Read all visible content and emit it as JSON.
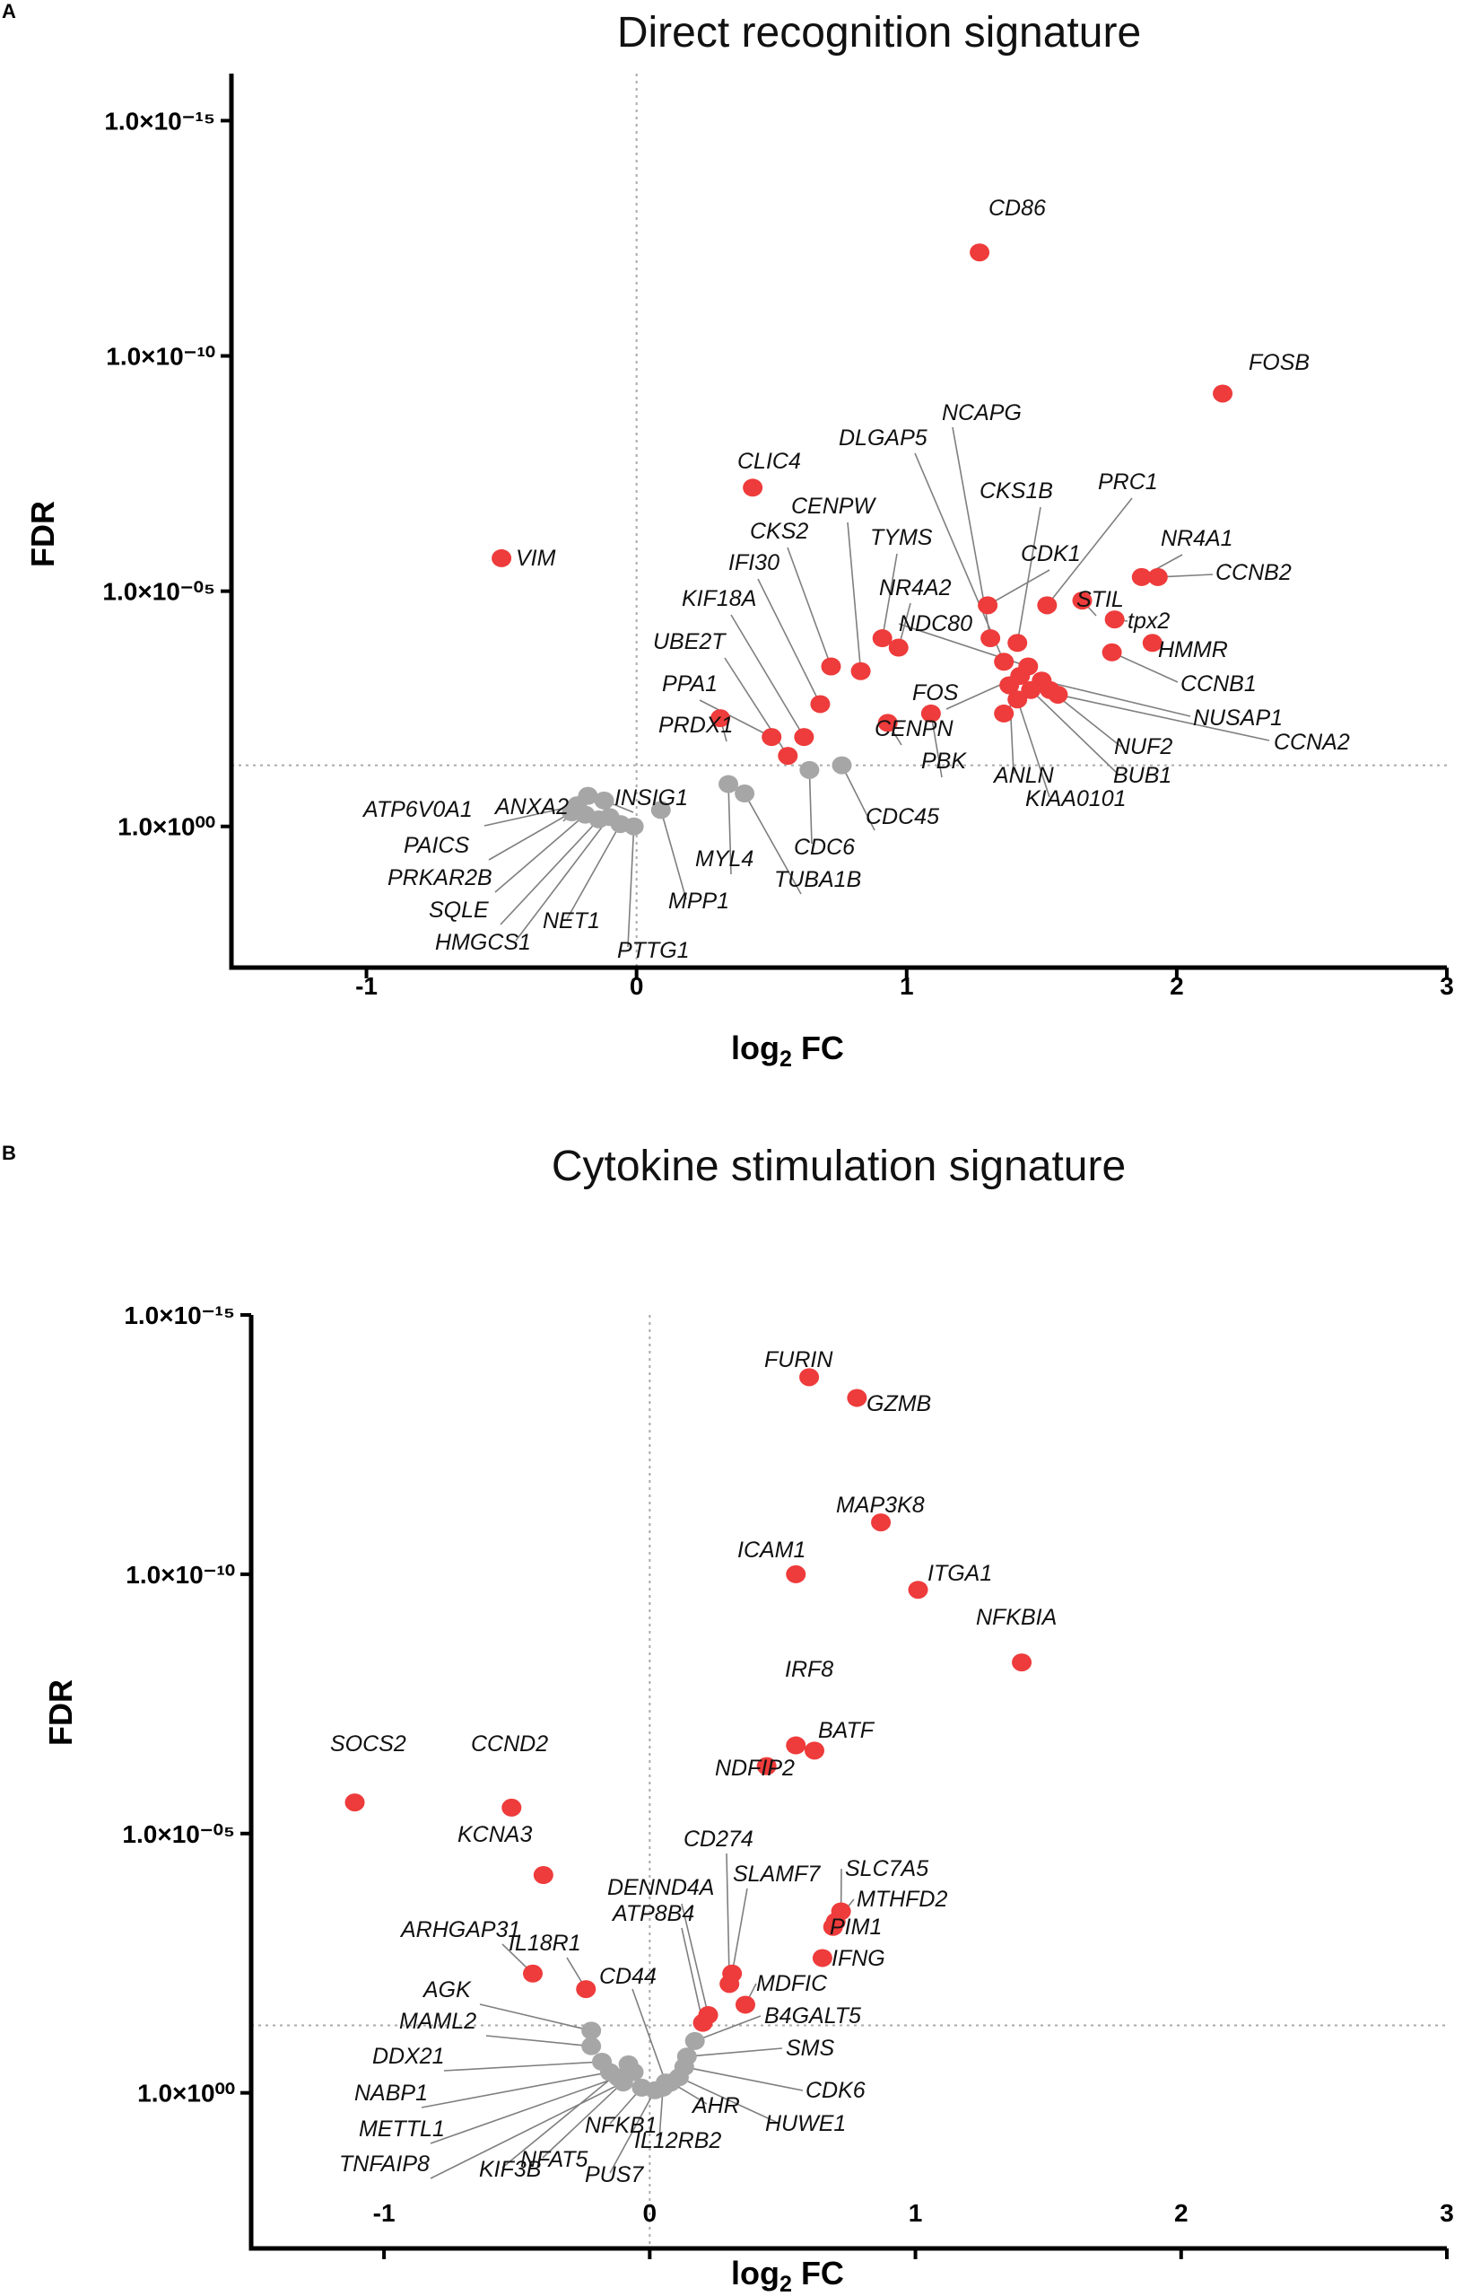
{
  "colors": {
    "significant": "#ee3b3b",
    "nonsignificant": "#a6a6a6",
    "leader": "#7f7f7f",
    "refline": "#aaaaaa"
  },
  "chart_data": [
    {
      "type": "scatter",
      "panel": "A",
      "title": "Direct recognition signature",
      "xlabel": "log₂ FC",
      "ylabel": "FDR",
      "xlim": [
        -1.5,
        3
      ],
      "xticks": [
        -1,
        0,
        1,
        2,
        3
      ],
      "ylim_neglog10": [
        -3,
        16
      ],
      "yticks": [
        {
          "value": 15,
          "label": "1.0×10⁻¹⁵"
        },
        {
          "value": 10,
          "label": "1.0×10⁻¹⁰"
        },
        {
          "value": 5,
          "label": "1.0×10⁻⁰⁵"
        },
        {
          "value": 0,
          "label": "1.0×10⁰⁰"
        }
      ],
      "threshold_neglog10": 1.3,
      "points": [
        {
          "gene": "CD86",
          "x": 1.27,
          "y": 12.2,
          "sig": true
        },
        {
          "gene": "FOSB",
          "x": 2.17,
          "y": 9.2,
          "sig": true
        },
        {
          "gene": "CLIC4",
          "x": 0.43,
          "y": 7.2,
          "sig": true
        },
        {
          "gene": "VIM",
          "x": -0.5,
          "y": 5.7,
          "sig": true
        },
        {
          "gene": "NR4A1",
          "x": 1.87,
          "y": 5.3,
          "sig": true
        },
        {
          "gene": "CCNB2",
          "x": 1.93,
          "y": 5.3,
          "sig": true
        },
        {
          "gene": "STIL",
          "x": 1.65,
          "y": 4.8,
          "sig": true
        },
        {
          "gene": "tpx2",
          "x": 1.77,
          "y": 4.4,
          "sig": true
        },
        {
          "gene": "HMMR",
          "x": 1.91,
          "y": 3.9,
          "sig": true
        },
        {
          "gene": "CCNB1",
          "x": 1.76,
          "y": 3.7,
          "sig": true
        },
        {
          "gene": "PRC1",
          "x": 1.52,
          "y": 4.7,
          "sig": true
        },
        {
          "gene": "CDK1",
          "x": 1.3,
          "y": 4.7,
          "sig": true
        },
        {
          "gene": "CKS1B",
          "x": 1.41,
          "y": 3.9,
          "sig": true
        },
        {
          "gene": "NCAPG",
          "x": 1.31,
          "y": 4.0,
          "sig": true
        },
        {
          "gene": "DLGAP5",
          "x": 1.36,
          "y": 3.5,
          "sig": true
        },
        {
          "gene": "TYMS",
          "x": 0.91,
          "y": 4.0,
          "sig": true
        },
        {
          "gene": "NR4A2",
          "x": 0.97,
          "y": 3.8,
          "sig": true
        },
        {
          "gene": "CENPW",
          "x": 0.83,
          "y": 3.3,
          "sig": true
        },
        {
          "gene": "CKS2",
          "x": 0.72,
          "y": 3.4,
          "sig": true
        },
        {
          "gene": "IFI30",
          "x": 0.68,
          "y": 2.6,
          "sig": true
        },
        {
          "gene": "KIF18A",
          "x": 0.62,
          "y": 1.9,
          "sig": true
        },
        {
          "gene": "UBE2T",
          "x": 0.56,
          "y": 1.5,
          "sig": true
        },
        {
          "gene": "PPA1",
          "x": 0.5,
          "y": 1.9,
          "sig": true
        },
        {
          "gene": "PRDX1",
          "x": 0.31,
          "y": 2.3,
          "sig": true
        },
        {
          "gene": "NDC80",
          "x": 1.45,
          "y": 3.4,
          "sig": true
        },
        {
          "gene": "FOS",
          "x": 1.42,
          "y": 3.2,
          "sig": true
        },
        {
          "gene": "CENPN",
          "x": 0.93,
          "y": 2.2,
          "sig": true
        },
        {
          "gene": "PBK",
          "x": 1.09,
          "y": 2.4,
          "sig": true
        },
        {
          "gene": "ANLN",
          "x": 1.38,
          "y": 3.0,
          "sig": true
        },
        {
          "gene": "NUSAP1",
          "x": 1.5,
          "y": 3.1,
          "sig": true
        },
        {
          "gene": "NUF2",
          "x": 1.53,
          "y": 2.9,
          "sig": true
        },
        {
          "gene": "CCNA2",
          "x": 1.56,
          "y": 2.8,
          "sig": true
        },
        {
          "gene": "BUB1",
          "x": 1.46,
          "y": 2.9,
          "sig": true
        },
        {
          "gene": "KIAA0101",
          "x": 1.41,
          "y": 2.7,
          "sig": true
        },
        {
          "gene": "",
          "x": 1.36,
          "y": 2.4,
          "sig": true
        },
        {
          "gene": "INSIG1",
          "x": -0.12,
          "y": 0.55,
          "sig": false
        },
        {
          "gene": "ANXA2",
          "x": -0.18,
          "y": 0.65,
          "sig": false
        },
        {
          "gene": "ATP6V0A1",
          "x": -0.22,
          "y": 0.45,
          "sig": false
        },
        {
          "gene": "PAICS",
          "x": -0.24,
          "y": 0.3,
          "sig": false
        },
        {
          "gene": "PRKAR2B",
          "x": -0.19,
          "y": 0.25,
          "sig": false
        },
        {
          "gene": "SQLE",
          "x": -0.14,
          "y": 0.15,
          "sig": false
        },
        {
          "gene": "HMGCS1",
          "x": -0.1,
          "y": 0.2,
          "sig": false
        },
        {
          "gene": "NET1",
          "x": -0.06,
          "y": 0.05,
          "sig": false
        },
        {
          "gene": "PTTG1",
          "x": -0.01,
          "y": 0.0,
          "sig": false
        },
        {
          "gene": "MPP1",
          "x": 0.09,
          "y": 0.35,
          "sig": false
        },
        {
          "gene": "MYL4",
          "x": 0.34,
          "y": 0.9,
          "sig": false
        },
        {
          "gene": "TUBA1B",
          "x": 0.4,
          "y": 0.7,
          "sig": false
        },
        {
          "gene": "CDC6",
          "x": 0.64,
          "y": 1.2,
          "sig": false
        },
        {
          "gene": "CDC45",
          "x": 0.76,
          "y": 1.3,
          "sig": false
        }
      ]
    },
    {
      "type": "scatter",
      "panel": "B",
      "title": "Cytokine stimulation signature",
      "xlabel": "log₂ FC",
      "ylabel": "FDR",
      "xlim": [
        -1.5,
        3
      ],
      "xticks": [
        -1,
        0,
        1,
        2,
        3
      ],
      "ylim_neglog10": [
        -3,
        15
      ],
      "yticks": [
        {
          "value": 15,
          "label": "1.0×10⁻¹⁵"
        },
        {
          "value": 10,
          "label": "1.0×10⁻¹⁰"
        },
        {
          "value": 5,
          "label": "1.0×10⁻⁰⁵"
        },
        {
          "value": 0,
          "label": "1.0×10⁰⁰"
        }
      ],
      "threshold_neglog10": 1.3,
      "points": [
        {
          "gene": "FURIN",
          "x": 0.6,
          "y": 13.8,
          "sig": true
        },
        {
          "gene": "GZMB",
          "x": 0.78,
          "y": 13.4,
          "sig": true
        },
        {
          "gene": "MAP3K8",
          "x": 0.87,
          "y": 11.0,
          "sig": true
        },
        {
          "gene": "ICAM1",
          "x": 0.55,
          "y": 10.0,
          "sig": true
        },
        {
          "gene": "ITGA1",
          "x": 1.01,
          "y": 9.7,
          "sig": true
        },
        {
          "gene": "NFKBIA",
          "x": 1.4,
          "y": 8.3,
          "sig": true
        },
        {
          "gene": "IRF8",
          "x": 0.55,
          "y": 6.7,
          "sig": true
        },
        {
          "gene": "BATF",
          "x": 0.62,
          "y": 6.6,
          "sig": true
        },
        {
          "gene": "NDFIP2",
          "x": 0.44,
          "y": 6.3,
          "sig": true
        },
        {
          "gene": "SOCS2",
          "x": -1.11,
          "y": 5.6,
          "sig": true
        },
        {
          "gene": "CCND2",
          "x": -0.52,
          "y": 5.5,
          "sig": true
        },
        {
          "gene": "KCNA3",
          "x": -0.4,
          "y": 4.2,
          "sig": true
        },
        {
          "gene": "SLC7A5",
          "x": 0.72,
          "y": 3.5,
          "sig": true
        },
        {
          "gene": "MTHFD2",
          "x": 0.7,
          "y": 3.3,
          "sig": true
        },
        {
          "gene": "PIM1",
          "x": 0.69,
          "y": 3.2,
          "sig": true
        },
        {
          "gene": "IFNG",
          "x": 0.65,
          "y": 2.6,
          "sig": true
        },
        {
          "gene": "SLAMF7",
          "x": 0.31,
          "y": 2.3,
          "sig": true
        },
        {
          "gene": "CD274",
          "x": 0.3,
          "y": 2.1,
          "sig": true
        },
        {
          "gene": "MDFIC",
          "x": 0.36,
          "y": 1.7,
          "sig": true
        },
        {
          "gene": "DENND4A",
          "x": 0.22,
          "y": 1.5,
          "sig": true
        },
        {
          "gene": "ATP8B4",
          "x": 0.2,
          "y": 1.35,
          "sig": true
        },
        {
          "gene": "ARHGAP31",
          "x": -0.44,
          "y": 2.3,
          "sig": true
        },
        {
          "gene": "IL18R1",
          "x": -0.24,
          "y": 2.0,
          "sig": true
        },
        {
          "gene": "CD44",
          "x": 0.06,
          "y": 0.2,
          "sig": false
        },
        {
          "gene": "AGK",
          "x": -0.22,
          "y": 1.2,
          "sig": false
        },
        {
          "gene": "MAML2",
          "x": -0.22,
          "y": 0.9,
          "sig": false
        },
        {
          "gene": "DDX21",
          "x": -0.18,
          "y": 0.6,
          "sig": false
        },
        {
          "gene": "NABP1",
          "x": -0.15,
          "y": 0.4,
          "sig": false
        },
        {
          "gene": "METTL1",
          "x": -0.12,
          "y": 0.3,
          "sig": false
        },
        {
          "gene": "TNFAIP8",
          "x": -0.1,
          "y": 0.2,
          "sig": false
        },
        {
          "gene": "KIF3B",
          "x": -0.08,
          "y": 0.55,
          "sig": false
        },
        {
          "gene": "NFAT5",
          "x": -0.06,
          "y": 0.4,
          "sig": false
        },
        {
          "gene": "NFKB1",
          "x": -0.03,
          "y": 0.1,
          "sig": false
        },
        {
          "gene": "PUS7",
          "x": 0.02,
          "y": 0.05,
          "sig": false
        },
        {
          "gene": "IL12RB2",
          "x": 0.05,
          "y": 0.1,
          "sig": false
        },
        {
          "gene": "AHR",
          "x": 0.08,
          "y": 0.2,
          "sig": false
        },
        {
          "gene": "HUWE1",
          "x": 0.11,
          "y": 0.3,
          "sig": false
        },
        {
          "gene": "CDK6",
          "x": 0.13,
          "y": 0.5,
          "sig": false
        },
        {
          "gene": "SMS",
          "x": 0.14,
          "y": 0.7,
          "sig": false
        },
        {
          "gene": "B4GALT5",
          "x": 0.17,
          "y": 1.0,
          "sig": false
        }
      ]
    }
  ]
}
